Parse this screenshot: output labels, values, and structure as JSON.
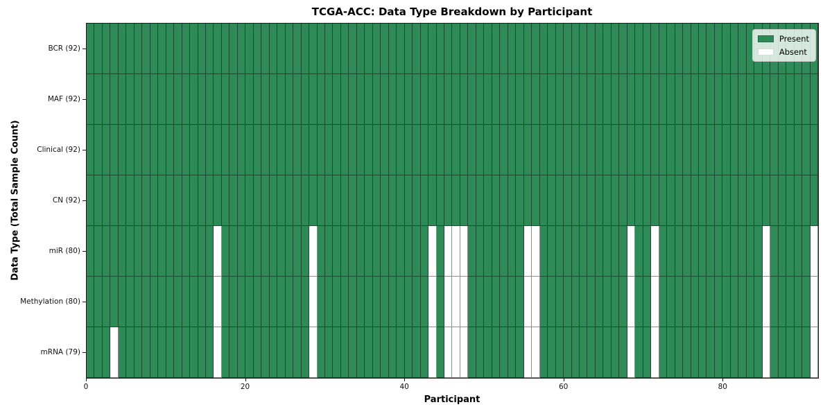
{
  "title": "TCGA-ACC: Data Type Breakdown by Participant",
  "xlabel": "Participant",
  "ylabel": "Data Type (Total Sample Count)",
  "legend": {
    "present_label": "Present",
    "absent_label": "Absent"
  },
  "colors": {
    "present": "#2e8b57",
    "absent": "#ffffff",
    "cell_edge": "rgba(0,0,0,0.45)",
    "legend_bg": "rgba(255,255,255,0.8)",
    "legend_border": "#cccccc"
  },
  "chart_data": {
    "type": "heatmap",
    "title": "TCGA-ACC: Data Type Breakdown by Participant",
    "xlabel": "Participant",
    "ylabel": "Data Type (Total Sample Count)",
    "legend_entries": [
      "Present",
      "Absent"
    ],
    "legend_position": "upper right",
    "n_participants": 92,
    "x_ticks": [
      "0",
      "20",
      "40",
      "60",
      "80"
    ],
    "x_tick_values": [
      0,
      20,
      40,
      60,
      80
    ],
    "xlim": [
      0,
      92
    ],
    "grid": true,
    "rows": [
      {
        "label": "BCR (92)",
        "data_type": "BCR",
        "present_count": 92,
        "absent_participants": []
      },
      {
        "label": "MAF (92)",
        "data_type": "MAF",
        "present_count": 92,
        "absent_participants": []
      },
      {
        "label": "Clinical (92)",
        "data_type": "Clinical",
        "present_count": 92,
        "absent_participants": []
      },
      {
        "label": "CN (92)",
        "data_type": "CN",
        "present_count": 92,
        "absent_participants": []
      },
      {
        "label": "miR (80)",
        "data_type": "miR",
        "present_count": 80,
        "absent_participants": [
          16,
          28,
          43,
          45,
          46,
          47,
          55,
          56,
          68,
          71,
          85,
          91
        ]
      },
      {
        "label": "Methylation (80)",
        "data_type": "Methylation",
        "present_count": 80,
        "absent_participants": [
          16,
          28,
          43,
          45,
          46,
          47,
          55,
          56,
          68,
          71,
          85,
          91
        ]
      },
      {
        "label": "mRNA (79)",
        "data_type": "mRNA",
        "present_count": 79,
        "absent_participants": [
          3,
          16,
          28,
          43,
          45,
          46,
          47,
          55,
          56,
          68,
          71,
          85,
          91
        ]
      }
    ]
  }
}
